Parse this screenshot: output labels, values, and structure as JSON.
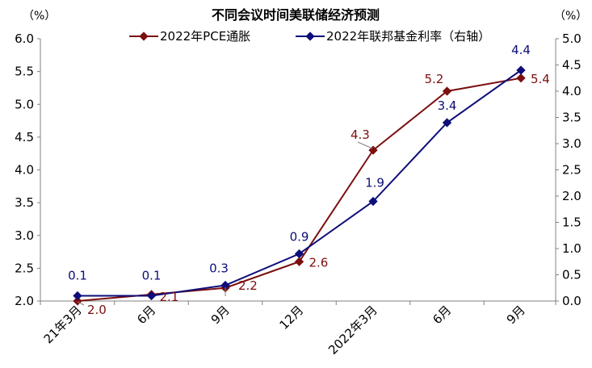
{
  "chart_data": {
    "type": "line",
    "title": "不同会议时间美联储经济预测",
    "left_unit": "（%）",
    "right_unit": "（%）",
    "categories": [
      "21年3月",
      "6月",
      "9月",
      "12月",
      "2022年3月",
      "6月",
      "9月"
    ],
    "left_axis": {
      "min": 2.0,
      "max": 6.0,
      "ticks": [
        "2.0",
        "2.5",
        "3.0",
        "3.5",
        "4.0",
        "4.5",
        "5.0",
        "5.5",
        "6.0"
      ]
    },
    "right_axis": {
      "min": 0.0,
      "max": 5.0,
      "ticks": [
        "0.0",
        "0.5",
        "1.0",
        "1.5",
        "2.0",
        "2.5",
        "3.0",
        "3.5",
        "4.0",
        "4.5",
        "5.0"
      ]
    },
    "series": [
      {
        "name": "2022年PCE通胀",
        "axis": "left",
        "color": "#7b0f0f",
        "values": [
          2.0,
          2.1,
          2.2,
          2.6,
          4.3,
          5.2,
          5.4
        ],
        "labels": [
          "2.0",
          "2.1",
          "2.2",
          "2.6",
          "4.3",
          "5.2",
          "5.4"
        ]
      },
      {
        "name": "2022年联邦基金利率（右轴）",
        "axis": "right",
        "color": "#0d0d7a",
        "values": [
          0.1,
          0.1,
          0.3,
          0.9,
          1.9,
          3.4,
          4.4
        ],
        "labels": [
          "0.1",
          "0.1",
          "0.3",
          "0.9",
          "1.9",
          "3.4",
          "4.4"
        ]
      }
    ],
    "legend_position": "top-center",
    "grid": false
  }
}
